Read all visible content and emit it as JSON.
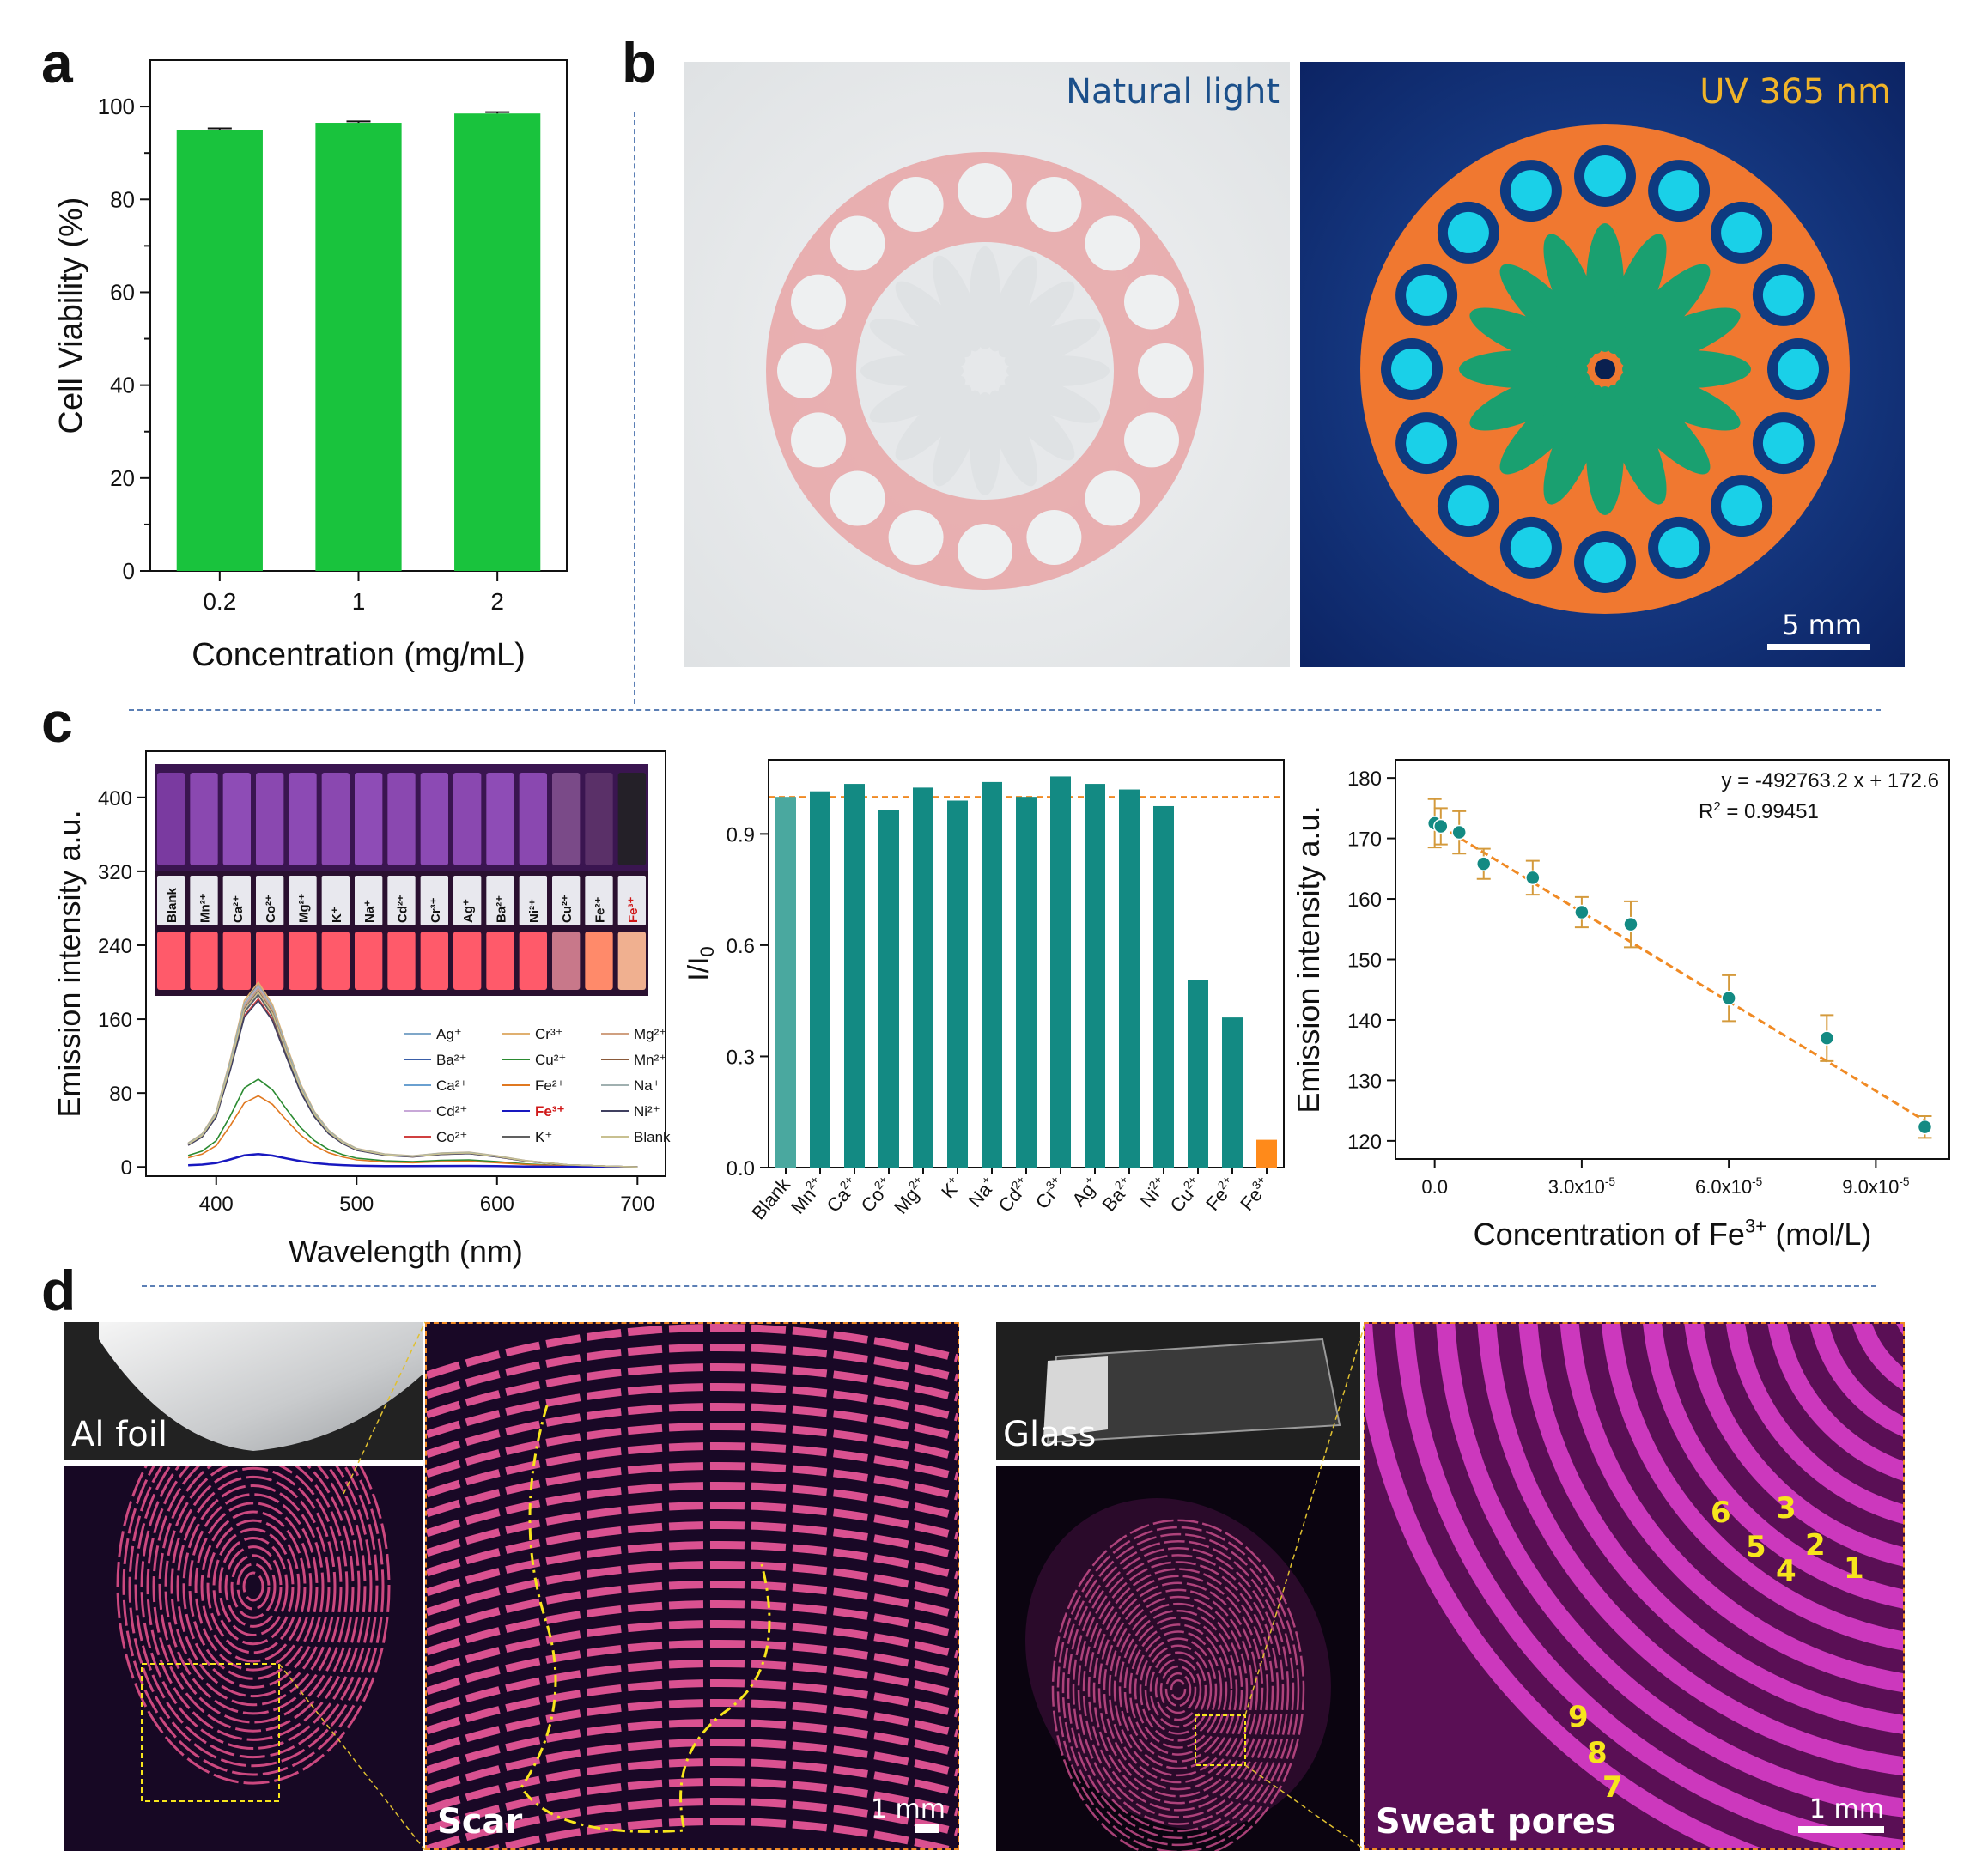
{
  "panels": {
    "a": "a",
    "b": "b",
    "c": "c",
    "d": "d"
  },
  "colors": {
    "bar_green": "#19c33d",
    "teal": "#138a83",
    "teal_light": "#4aa89f",
    "orange": "#ff8a1a",
    "fit_line": "#f08a24",
    "error_bar": "#d49a3c",
    "divider": "#5b7fb5",
    "annotation_yellow": "#f7e51c",
    "uv_label": "#f0b429",
    "natural_label": "#1b4f8a"
  },
  "panel_b": {
    "natural_label": "Natural light",
    "uv_label": "UV 365 nm",
    "scale_bar": "5 mm"
  },
  "panel_c": {
    "vial_labels": [
      "Blank",
      "Mn²⁺",
      "Ca²⁺",
      "Co²⁺",
      "Mg²⁺",
      "K⁺",
      "Na⁺",
      "Cd²⁺",
      "Cr³⁺",
      "Ag⁺",
      "Ba²⁺",
      "Ni²⁺",
      "Cu²⁺",
      "Fe²⁺",
      "Fe³⁺"
    ],
    "fit_equation": "y = -492763.2 x + 172.6",
    "r2_label": "R",
    "r2_sup": "2",
    "r2_value": " = 0.99451"
  },
  "panel_d": {
    "al_label": "Al foil",
    "glass_label": "Glass",
    "scar_label": "Scar",
    "pores_label": "Sweat pores",
    "scale_left": "1 mm",
    "scale_right": "1 mm",
    "pore_numbers": [
      "1",
      "2",
      "3",
      "4",
      "5",
      "6",
      "7",
      "8",
      "9"
    ]
  },
  "chart_data": [
    {
      "id": "a",
      "type": "bar",
      "categories": [
        "0.2",
        "1",
        "2"
      ],
      "values": [
        95.0,
        96.5,
        98.5
      ],
      "errors": [
        0.3,
        0.3,
        0.3
      ],
      "xlabel": "Concentration (mg/mL)",
      "ylabel": "Cell Viability (%)",
      "ylim": [
        0,
        110
      ],
      "yticks": [
        0,
        20,
        40,
        60,
        80,
        100
      ]
    },
    {
      "id": "c1",
      "type": "line",
      "xlabel": "Wavelength (nm)",
      "ylabel": "Emission intensity a.u.",
      "xlim": [
        350,
        720
      ],
      "ylim": [
        -10,
        450
      ],
      "xticks": [
        400,
        500,
        600,
        700
      ],
      "yticks": [
        0,
        80,
        160,
        240,
        320,
        400
      ],
      "legend": [
        "Ag⁺",
        "Ba²⁺",
        "Ca²⁺",
        "Cd²⁺",
        "Co²⁺",
        "Cr³⁺",
        "Cu²⁺",
        "Fe²⁺",
        "Fe³⁺",
        "K⁺",
        "Mg²⁺",
        "Mn²⁺",
        "Na⁺",
        "Ni²⁺",
        "Blank"
      ],
      "series": [
        {
          "name": "Ag⁺",
          "peak": 195
        },
        {
          "name": "Ba²⁺",
          "peak": 188
        },
        {
          "name": "Ca²⁺",
          "peak": 192
        },
        {
          "name": "Cd²⁺",
          "peak": 196
        },
        {
          "name": "Co²⁺",
          "peak": 182
        },
        {
          "name": "Cr³⁺",
          "peak": 200
        },
        {
          "name": "Cu²⁺",
          "peak": 95
        },
        {
          "name": "Fe²⁺",
          "peak": 77
        },
        {
          "name": "Fe³⁺",
          "peak": 14
        },
        {
          "name": "K⁺",
          "peak": 186
        },
        {
          "name": "Mg²⁺",
          "peak": 193
        },
        {
          "name": "Mn²⁺",
          "peak": 190
        },
        {
          "name": "Na⁺",
          "peak": 197
        },
        {
          "name": "Ni²⁺",
          "peak": 180
        },
        {
          "name": "Blank",
          "peak": 189
        }
      ],
      "x": [
        380,
        390,
        400,
        410,
        420,
        430,
        440,
        450,
        460,
        470,
        480,
        490,
        500,
        520,
        540,
        560,
        580,
        600,
        620,
        650,
        680,
        700
      ],
      "shape": [
        0.13,
        0.18,
        0.3,
        0.58,
        0.9,
        1.0,
        0.88,
        0.66,
        0.45,
        0.3,
        0.2,
        0.14,
        0.1,
        0.07,
        0.06,
        0.075,
        0.08,
        0.06,
        0.035,
        0.012,
        0.004,
        0.0
      ]
    },
    {
      "id": "c2",
      "type": "bar",
      "categories": [
        "Blank",
        "Mn2+",
        "Ca2+",
        "Co2+",
        "Mg2+",
        "K+",
        "Na+",
        "Cd2+",
        "Cr3+",
        "Ag+",
        "Ba2+",
        "Ni2+",
        "Cu2+",
        "Fe2+",
        "Fe3+"
      ],
      "category_base": [
        "Blank",
        "Mn",
        "Ca",
        "Co",
        "Mg",
        "K",
        "Na",
        "Cd",
        "Cr",
        "Ag",
        "Ba",
        "Ni",
        "Cu",
        "Fe",
        "Fe"
      ],
      "category_sup": [
        "",
        "2+",
        "2+",
        "2+",
        "2+",
        "+",
        "+",
        "2+",
        "3+",
        "+",
        "2+",
        "2+",
        "2+",
        "2+",
        "3+"
      ],
      "values": [
        1.0,
        1.015,
        1.035,
        0.965,
        1.025,
        0.99,
        1.04,
        1.0,
        1.055,
        1.035,
        1.02,
        0.975,
        0.505,
        0.405,
        0.075
      ],
      "reference_line": 1.0,
      "ylabel_base": "I/I",
      "ylabel_sub": "0",
      "ylim": [
        0,
        1.1
      ],
      "yticks": [
        0.0,
        0.3,
        0.6,
        0.9
      ]
    },
    {
      "id": "c3",
      "type": "scatter",
      "x": [
        0,
        1.25e-06,
        5e-06,
        1e-05,
        2e-05,
        3e-05,
        4e-05,
        6e-05,
        8e-05,
        0.0001
      ],
      "y": [
        172.5,
        172.0,
        171.0,
        165.8,
        163.5,
        157.8,
        155.8,
        143.6,
        137.0,
        122.3
      ],
      "errors": [
        4.0,
        3.0,
        3.5,
        2.5,
        2.8,
        2.5,
        3.8,
        3.8,
        3.8,
        1.8
      ],
      "fit": {
        "slope": -492763.2,
        "intercept": 172.6
      },
      "xlabel_base": "Concentration of Fe",
      "xlabel_sup": "3+",
      "xlabel_tail": " (mol/L)",
      "ylabel": "Emission intensity a.u.",
      "xlim": [
        -8e-06,
        0.000105
      ],
      "ylim": [
        117,
        183
      ],
      "yticks": [
        120,
        130,
        140,
        150,
        160,
        170,
        180
      ],
      "xticks": [
        0,
        3e-05,
        6e-05,
        9e-05
      ],
      "xtick_labels": [
        {
          "base": "0.0",
          "sup": ""
        },
        {
          "base": "3.0x10",
          "sup": "-5"
        },
        {
          "base": "6.0x10",
          "sup": "-5"
        },
        {
          "base": "9.0x10",
          "sup": "-5"
        }
      ]
    }
  ]
}
